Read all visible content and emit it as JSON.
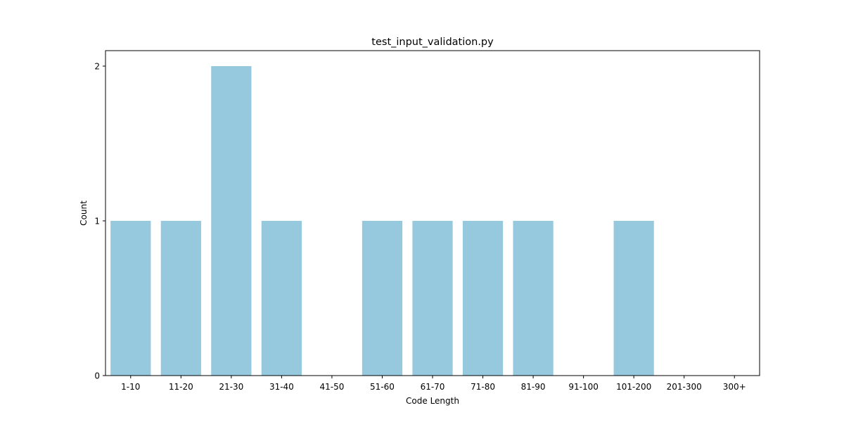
{
  "chart_data": {
    "type": "bar",
    "title": "test_input_validation.py",
    "xlabel": "Code Length",
    "ylabel": "Count",
    "categories": [
      "1-10",
      "11-20",
      "21-30",
      "31-40",
      "41-50",
      "51-60",
      "61-70",
      "71-80",
      "81-90",
      "91-100",
      "101-200",
      "201-300",
      "300+"
    ],
    "values": [
      1,
      1,
      2,
      1,
      0,
      1,
      1,
      1,
      1,
      0,
      1,
      0,
      0
    ],
    "ylim": [
      0,
      2.1
    ],
    "yticks": [
      0,
      1,
      2
    ],
    "grid": false,
    "legend": "none",
    "colors": {
      "bar": "#96c9de",
      "axis": "#000000"
    }
  }
}
